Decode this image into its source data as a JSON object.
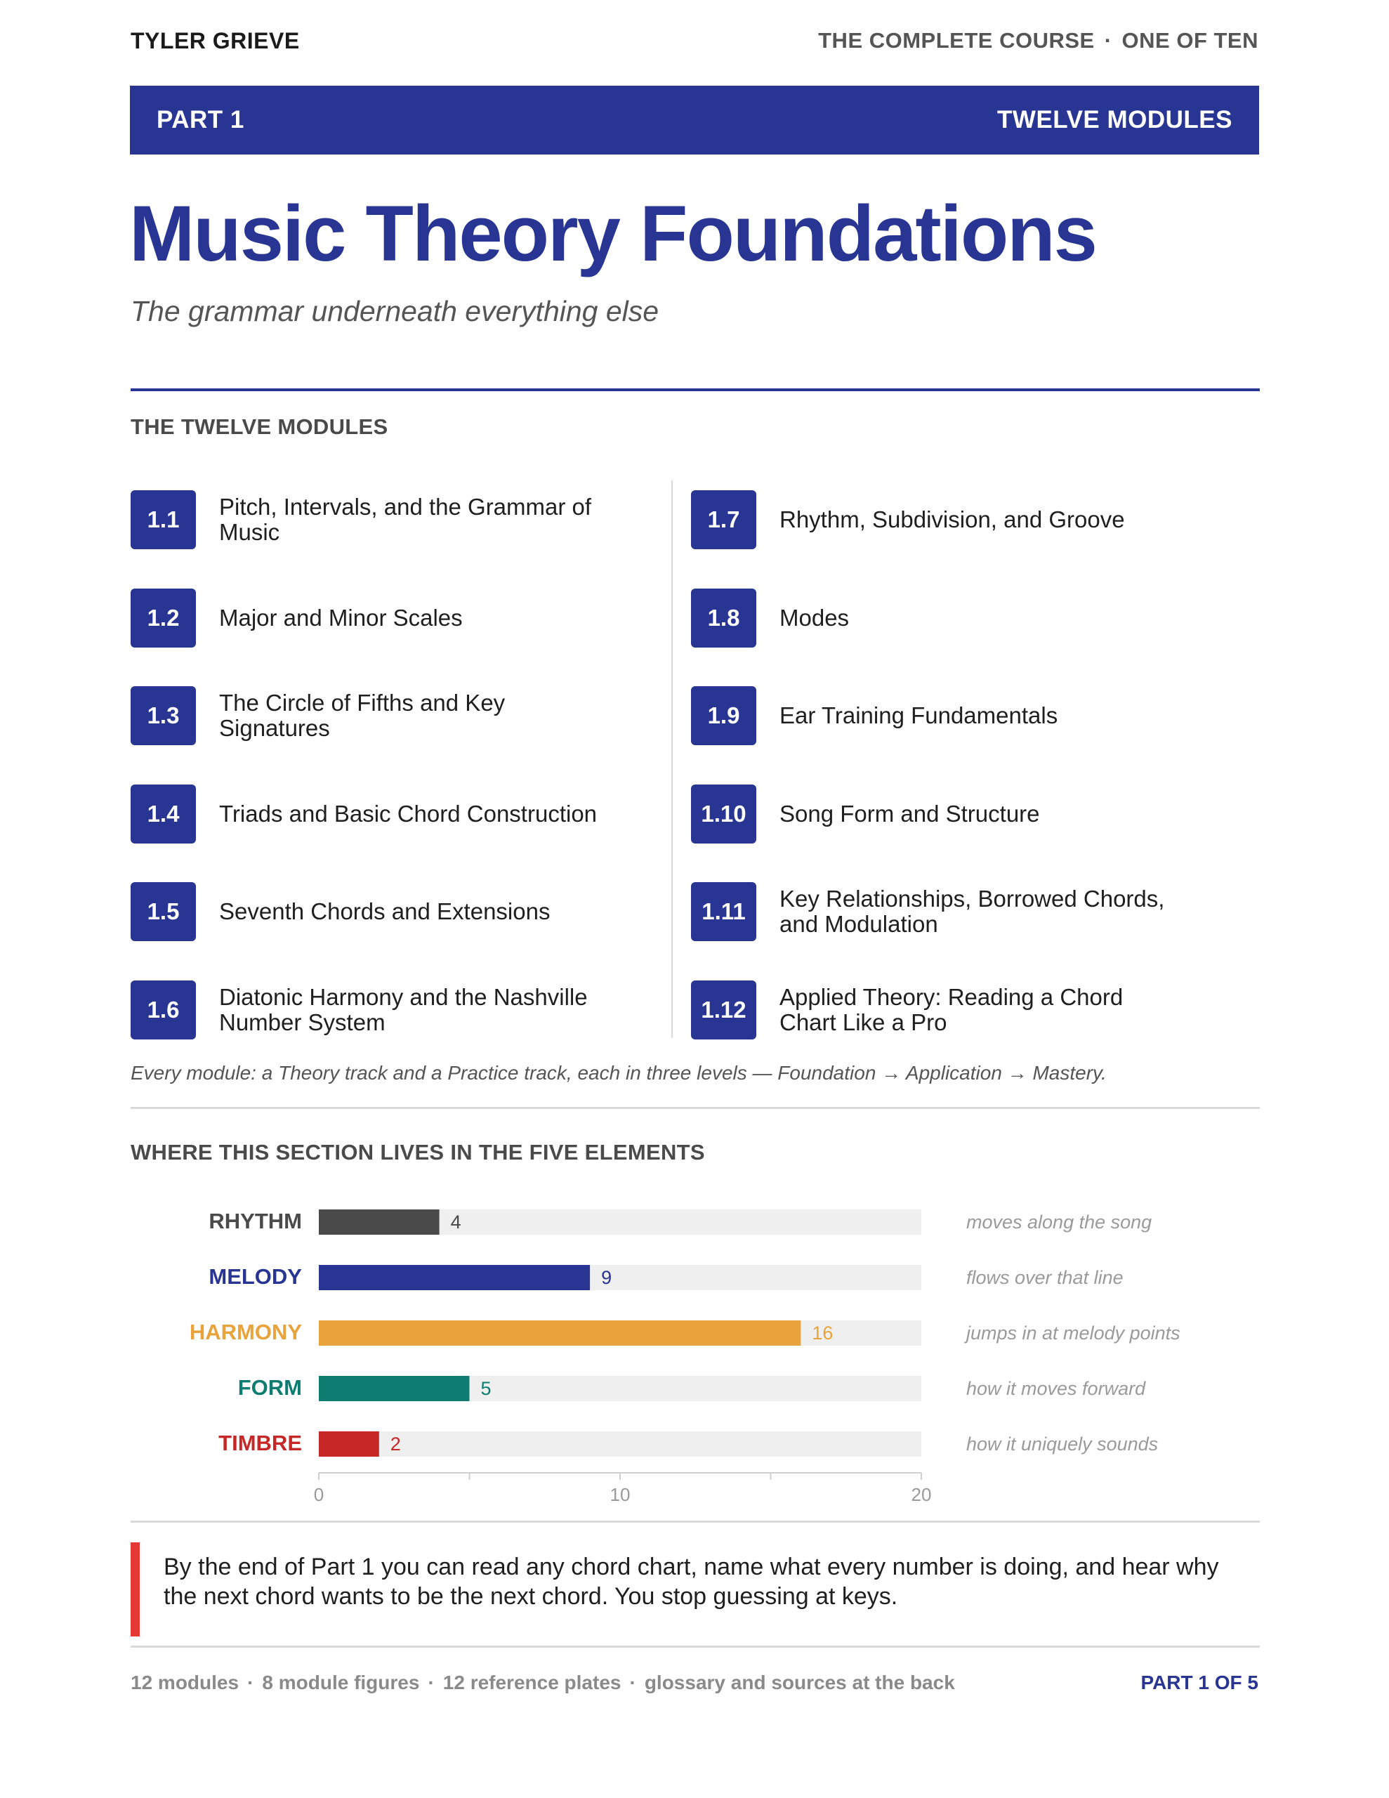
{
  "header": {
    "author": "TYLER GRIEVE",
    "course": "THE COMPLETE COURSE",
    "volume": "ONE OF TEN"
  },
  "banner": {
    "part": "PART 1",
    "modules_count": "TWELVE MODULES"
  },
  "title": "Music Theory Foundations",
  "subtitle": "The grammar underneath everything else",
  "modules_heading": "THE TWELVE MODULES",
  "modules": [
    {
      "num": "1.1",
      "label": "Pitch, Intervals, and the Grammar of Music"
    },
    {
      "num": "1.2",
      "label": "Major and Minor Scales"
    },
    {
      "num": "1.3",
      "label": "The Circle of Fifths and Key Signatures"
    },
    {
      "num": "1.4",
      "label": "Triads and Basic Chord Construction"
    },
    {
      "num": "1.5",
      "label": "Seventh Chords and Extensions"
    },
    {
      "num": "1.6",
      "label": "Diatonic Harmony and the Nashville Number System"
    },
    {
      "num": "1.7",
      "label": "Rhythm, Subdivision, and Groove"
    },
    {
      "num": "1.8",
      "label": "Modes"
    },
    {
      "num": "1.9",
      "label": "Ear Training Fundamentals"
    },
    {
      "num": "1.10",
      "label": "Song Form and Structure"
    },
    {
      "num": "1.11",
      "label": "Key Relationships, Borrowed Chords, and Modulation"
    },
    {
      "num": "1.12",
      "label": "Applied Theory: Reading a Chord Chart Like a Pro"
    }
  ],
  "modules_note": "Every module: a Theory track and a Practice track, each in three levels — Foundation → Application → Mastery.",
  "elements_heading": "WHERE THIS SECTION LIVES IN THE FIVE ELEMENTS",
  "chart_data": {
    "type": "bar",
    "orientation": "horizontal",
    "categories": [
      "RHYTHM",
      "MELODY",
      "HARMONY",
      "FORM",
      "TIMBRE"
    ],
    "values": [
      4,
      9,
      16,
      5,
      2
    ],
    "colors": [
      "#4a4a4a",
      "#283593",
      "#e8a33d",
      "#0e7c70",
      "#c62828"
    ],
    "annotations": [
      "moves along the song",
      "flows over that line",
      "jumps in at melody points",
      "how it moves forward",
      "how it uniquely sounds"
    ],
    "xlim": [
      0,
      20
    ],
    "xticks": [
      0,
      10,
      20
    ],
    "track_color": "#efefef"
  },
  "callout": "By the end of Part 1 you can read any chord chart, name what every number is doing, and hear why the next chord wants to be the next chord. You stop guessing at keys.",
  "footer": {
    "items": [
      "12 modules",
      "8 module figures",
      "12 reference plates",
      "glossary and sources at the back"
    ],
    "page": "PART 1 OF 5"
  }
}
